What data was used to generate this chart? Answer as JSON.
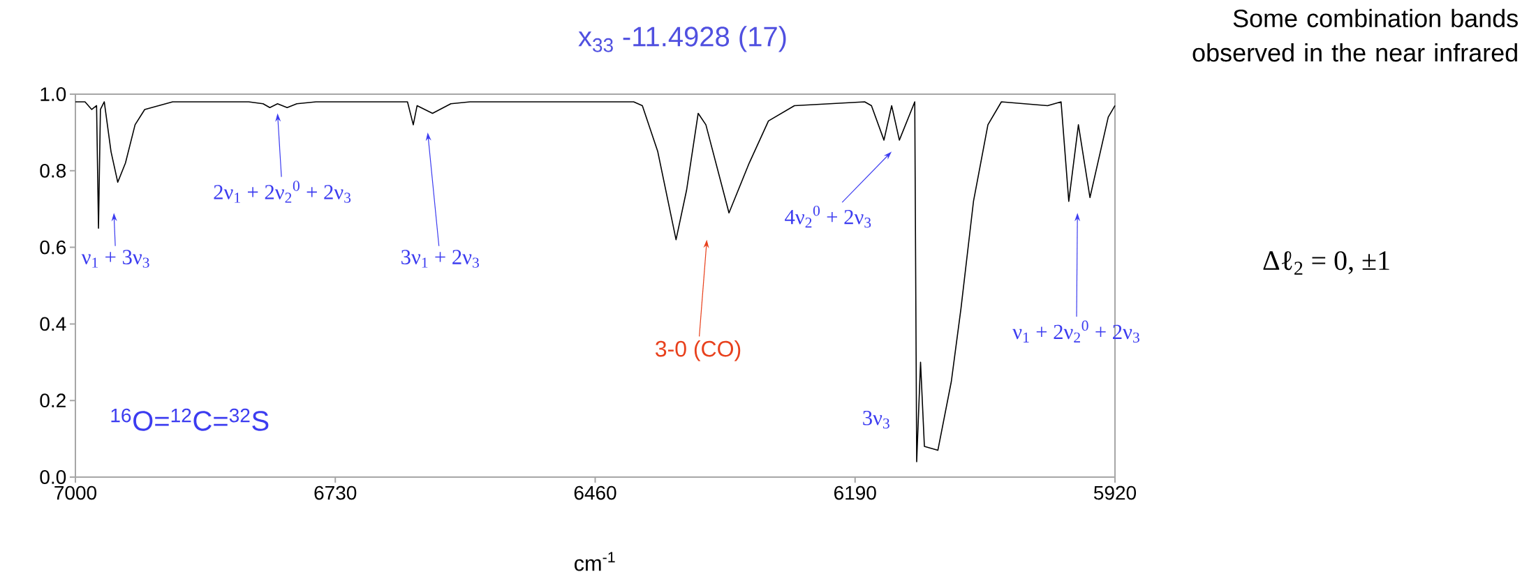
{
  "chart_data": {
    "type": "line",
    "title": "x$_{33}$ -11.4928 (17)",
    "xlabel": "cm$^{-1}$",
    "x": [
      7000,
      6990,
      6983,
      6978,
      6976,
      6974,
      6970,
      6963,
      6956,
      6948,
      6938,
      6928,
      6899,
      6820,
      6805,
      6798,
      6790,
      6780,
      6770,
      6750,
      6655,
      6649,
      6645,
      6629,
      6610,
      6590,
      6420,
      6411,
      6395,
      6376,
      6365,
      6353,
      6345,
      6321,
      6300,
      6280,
      6253,
      6180,
      6173,
      6160,
      6152,
      6144,
      6128,
      6126,
      6122,
      6118,
      6104,
      6090,
      6080,
      6067,
      6052,
      6038,
      5990,
      5976,
      5968,
      5958,
      5946,
      5927,
      5920
    ],
    "series": [
      {
        "color": "#000000",
        "values": [
          0.98,
          0.98,
          0.96,
          0.97,
          0.65,
          0.96,
          0.98,
          0.85,
          0.77,
          0.82,
          0.92,
          0.96,
          0.98,
          0.98,
          0.975,
          0.965,
          0.975,
          0.965,
          0.975,
          0.98,
          0.98,
          0.92,
          0.97,
          0.95,
          0.975,
          0.98,
          0.98,
          0.97,
          0.85,
          0.62,
          0.75,
          0.95,
          0.92,
          0.69,
          0.82,
          0.93,
          0.97,
          0.98,
          0.97,
          0.88,
          0.97,
          0.88,
          0.98,
          0.04,
          0.3,
          0.08,
          0.07,
          0.25,
          0.44,
          0.72,
          0.92,
          0.98,
          0.97,
          0.98,
          0.72,
          0.92,
          0.73,
          0.94,
          0.97
        ]
      }
    ],
    "xlim": [
      7000,
      5920
    ],
    "xticks": [
      7000,
      6730,
      6460,
      6190,
      5920
    ],
    "ylim": [
      0,
      1
    ],
    "yticks": [
      {
        "value": 0,
        "label": "0.0"
      },
      {
        "value": 0.2,
        "label": "0.2"
      },
      {
        "value": 0.4,
        "label": "0.4"
      },
      {
        "value": 0.6,
        "label": "0.6"
      },
      {
        "value": 0.8,
        "label": "0.8"
      },
      {
        "value": 1,
        "label": "1.0"
      }
    ],
    "grid": false,
    "marker": "none",
    "line_style": "solid",
    "annotations": [
      "ν$_{1}$ + 3ν$_{3}$",
      "2ν$_{1}$ + 2ν$_{2}$$^{0}$ + 2ν$_{3}$",
      "3ν$_{1}$ + 2ν$_{3}$",
      "3-0 (CO)",
      "4ν$_{2}$$^{0}$ + 2ν$_{3}$",
      "3ν$_{3}$",
      "ν$_{1}$ + 2ν$_{2}$$^{0}$ + 2ν$_{3}$",
      "$^{16}$O=$^{12}$C=$^{32}$S",
      "Some combination bands observed in the near infrared",
      "Δℓ$_{2}$ = 0, ±1"
    ]
  }
}
